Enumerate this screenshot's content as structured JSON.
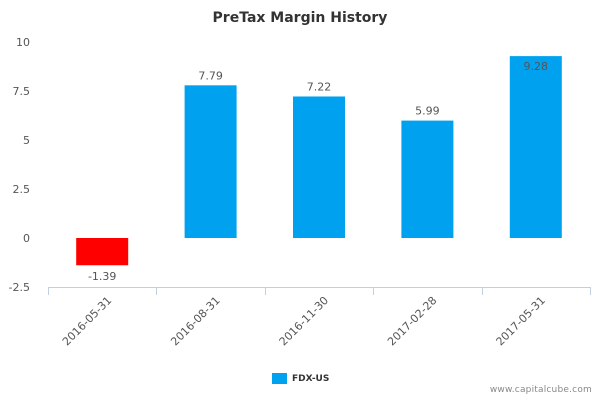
{
  "chart_data": {
    "type": "bar",
    "title": "PreTax Margin History",
    "xlabel": "",
    "ylabel": "",
    "categories": [
      "2016-05-31",
      "2016-08-31",
      "2016-11-30",
      "2017-02-28",
      "2017-05-31"
    ],
    "series": [
      {
        "name": "FDX-US",
        "values": [
          -1.39,
          7.79,
          7.22,
          5.99,
          9.28
        ]
      }
    ],
    "value_labels": [
      "-1.39",
      "7.79",
      "7.22",
      "5.99",
      "9.28"
    ],
    "ylim": [
      -2.5,
      10
    ],
    "yticks": [
      10,
      7.5,
      5,
      2.5,
      0,
      -2.5
    ],
    "ytick_labels": [
      "10",
      "7.5",
      "5",
      "2.5",
      "0",
      "-2.5"
    ],
    "grid": false,
    "legend_position": "bottom-center",
    "colors": {
      "positive": "#00A2EF",
      "negative": "#FF0000",
      "axis": "#C0D0E0",
      "text": "#555555",
      "title": "#333333"
    }
  },
  "footer": {
    "source": "www.capitalcube.com"
  }
}
